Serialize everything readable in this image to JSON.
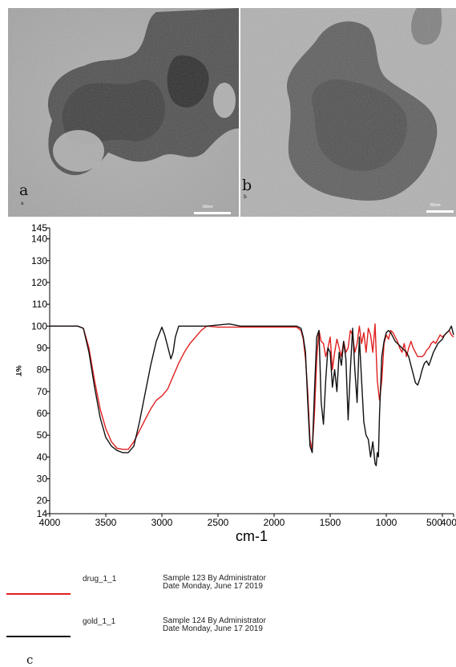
{
  "panels": {
    "a": {
      "letter": "a",
      "sub": "a",
      "scale_label": "60nm"
    },
    "b": {
      "letter": "b",
      "sub": "b",
      "scale_label": "80nm"
    },
    "c": {
      "letter": "c"
    }
  },
  "chart_data": {
    "type": "line",
    "title": "",
    "xlabel": "cm-1",
    "ylabel": "%T",
    "xlim": [
      4000,
      400
    ],
    "ylim": [
      14,
      145
    ],
    "x_ticks": [
      4000,
      3500,
      3000,
      2500,
      2000,
      1500,
      1000,
      500,
      400
    ],
    "x_tick_labels": [
      "4000",
      "3500",
      "3000",
      "2500",
      "2000",
      "1500",
      "1000",
      "500",
      "400"
    ],
    "y_ticks": [
      14,
      20,
      30,
      40,
      50,
      60,
      70,
      80,
      90,
      100,
      110,
      120,
      130,
      140,
      145
    ],
    "y_tick_labels": [
      "14",
      "20",
      "30",
      "40",
      "50",
      "60",
      "70",
      "80",
      "90",
      "100",
      "110",
      "120",
      "130",
      "140",
      "145"
    ],
    "grid": false,
    "legend_position": "bottom-left",
    "series": [
      {
        "name": "drug_1_1",
        "description": "Sample 123 By Administrator Date Monday, June 17 2019",
        "color": "#e02020",
        "x": [
          4000,
          3750,
          3700,
          3650,
          3600,
          3550,
          3500,
          3450,
          3400,
          3350,
          3300,
          3250,
          3200,
          3150,
          3100,
          3050,
          3000,
          2950,
          2900,
          2850,
          2800,
          2750,
          2700,
          2650,
          2600,
          2500,
          2400,
          2300,
          2200,
          2100,
          2000,
          1900,
          1800,
          1760,
          1740,
          1720,
          1700,
          1680,
          1660,
          1640,
          1620,
          1600,
          1580,
          1560,
          1540,
          1520,
          1500,
          1480,
          1460,
          1440,
          1420,
          1400,
          1380,
          1360,
          1340,
          1320,
          1300,
          1280,
          1260,
          1240,
          1220,
          1200,
          1180,
          1160,
          1140,
          1120,
          1100,
          1080,
          1060,
          1040,
          1020,
          1000,
          980,
          960,
          940,
          920,
          900,
          880,
          860,
          840,
          820,
          800,
          780,
          760,
          740,
          720,
          700,
          680,
          660,
          640,
          620,
          600,
          580,
          560,
          540,
          520,
          500,
          480,
          460,
          440,
          420,
          400
        ],
        "y": [
          100,
          100,
          99,
          90,
          75,
          62,
          53,
          47,
          44,
          43.5,
          43.5,
          47,
          52,
          57,
          62,
          66,
          68,
          71,
          77,
          83,
          88,
          92,
          95,
          98,
          100,
          99.5,
          99.5,
          99.5,
          99.5,
          99.5,
          99.5,
          99.5,
          99.5,
          98,
          94,
          85,
          70,
          48,
          43,
          60,
          85,
          98,
          93,
          92,
          86,
          90,
          95,
          80,
          88,
          94,
          90,
          86,
          93,
          88,
          90,
          98,
          96,
          88,
          92,
          100,
          92,
          97,
          88,
          99,
          96,
          88,
          101,
          75,
          66,
          75,
          92,
          96,
          94,
          98,
          97,
          95,
          93,
          90,
          88,
          92,
          86,
          90,
          93,
          90,
          88,
          86,
          86,
          86,
          87,
          89,
          90,
          92,
          93,
          92,
          94,
          96,
          95,
          96,
          97,
          98,
          96,
          95
        ]
      },
      {
        "name": "gold_1_1",
        "description": "Sample 124 By Administrator Date Monday, June 17 2019",
        "color": "#111111",
        "x": [
          4000,
          3750,
          3700,
          3650,
          3600,
          3550,
          3500,
          3450,
          3400,
          3350,
          3300,
          3250,
          3200,
          3150,
          3100,
          3050,
          3000,
          2975,
          2950,
          2920,
          2900,
          2880,
          2850,
          2800,
          2700,
          2600,
          2500,
          2400,
          2300,
          2200,
          2100,
          2000,
          1900,
          1800,
          1760,
          1740,
          1720,
          1700,
          1680,
          1660,
          1640,
          1620,
          1600,
          1580,
          1560,
          1540,
          1520,
          1500,
          1480,
          1460,
          1440,
          1420,
          1400,
          1380,
          1360,
          1340,
          1320,
          1300,
          1280,
          1260,
          1240,
          1220,
          1200,
          1180,
          1160,
          1140,
          1120,
          1100,
          1090,
          1080,
          1070,
          1060,
          1040,
          1020,
          1000,
          980,
          960,
          940,
          920,
          900,
          880,
          860,
          840,
          820,
          800,
          780,
          760,
          740,
          720,
          700,
          680,
          660,
          640,
          620,
          600,
          580,
          560,
          540,
          520,
          500,
          480,
          460,
          440,
          420,
          400
        ],
        "y": [
          100,
          100,
          99,
          88,
          72,
          58,
          49,
          45,
          43,
          42,
          42,
          45,
          56,
          69,
          82,
          93,
          99.5,
          96,
          91,
          85,
          88,
          95,
          100,
          100,
          100,
          100,
          100.5,
          101,
          100,
          100,
          100,
          100,
          100,
          100,
          99,
          95,
          88,
          65,
          45,
          42,
          70,
          95,
          98,
          65,
          55,
          75,
          90,
          88,
          72,
          80,
          70,
          88,
          82,
          93,
          85,
          57,
          80,
          99,
          80,
          65,
          95,
          75,
          56,
          50,
          48,
          40,
          47,
          37,
          36,
          42,
          40,
          60,
          86,
          93,
          97,
          98,
          97,
          95,
          93,
          92,
          91,
          90,
          89,
          88,
          86,
          82,
          78,
          74,
          73,
          76,
          80,
          83,
          84,
          82,
          85,
          88,
          90,
          92,
          93,
          94,
          96,
          97,
          98,
          100,
          96
        ]
      }
    ]
  }
}
